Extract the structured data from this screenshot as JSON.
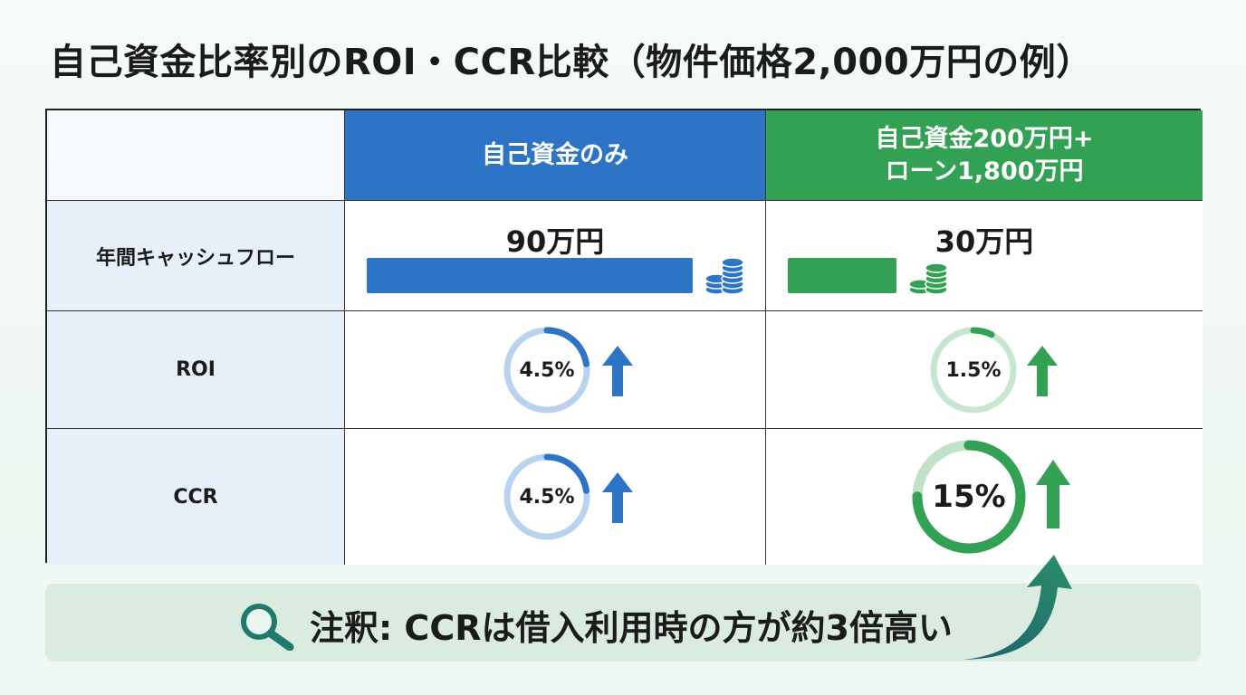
{
  "title": "自己資金比率別のROI・CCR比較（物件価格2,000万円の例）",
  "columns": {
    "self_funded": {
      "label": "自己資金のみ",
      "color": "#2e74c6",
      "cash_flow": "90万円",
      "cash_flow_value": 90,
      "roi": "4.5%",
      "roi_value": 4.5,
      "ccr": "4.5%",
      "ccr_value": 4.5
    },
    "leveraged": {
      "label_line1": "自己資金200万円+",
      "label_line2": "ローン1,800万円",
      "color": "#33a153",
      "cash_flow": "30万円",
      "cash_flow_value": 30,
      "roi": "1.5%",
      "roi_value": 1.5,
      "ccr": "15%",
      "ccr_value": 15
    }
  },
  "rows": {
    "cash_flow": "年間キャッシュフロー",
    "roi": "ROI",
    "ccr": "CCR"
  },
  "note": "注釈: CCRは借入利用時の方が約3倍高い",
  "icons": {
    "coins": "coin-stack-icon",
    "up_arrow": "up-arrow-icon",
    "magnifier": "magnifier-icon",
    "swoosh": "curved-arrow-icon"
  }
}
